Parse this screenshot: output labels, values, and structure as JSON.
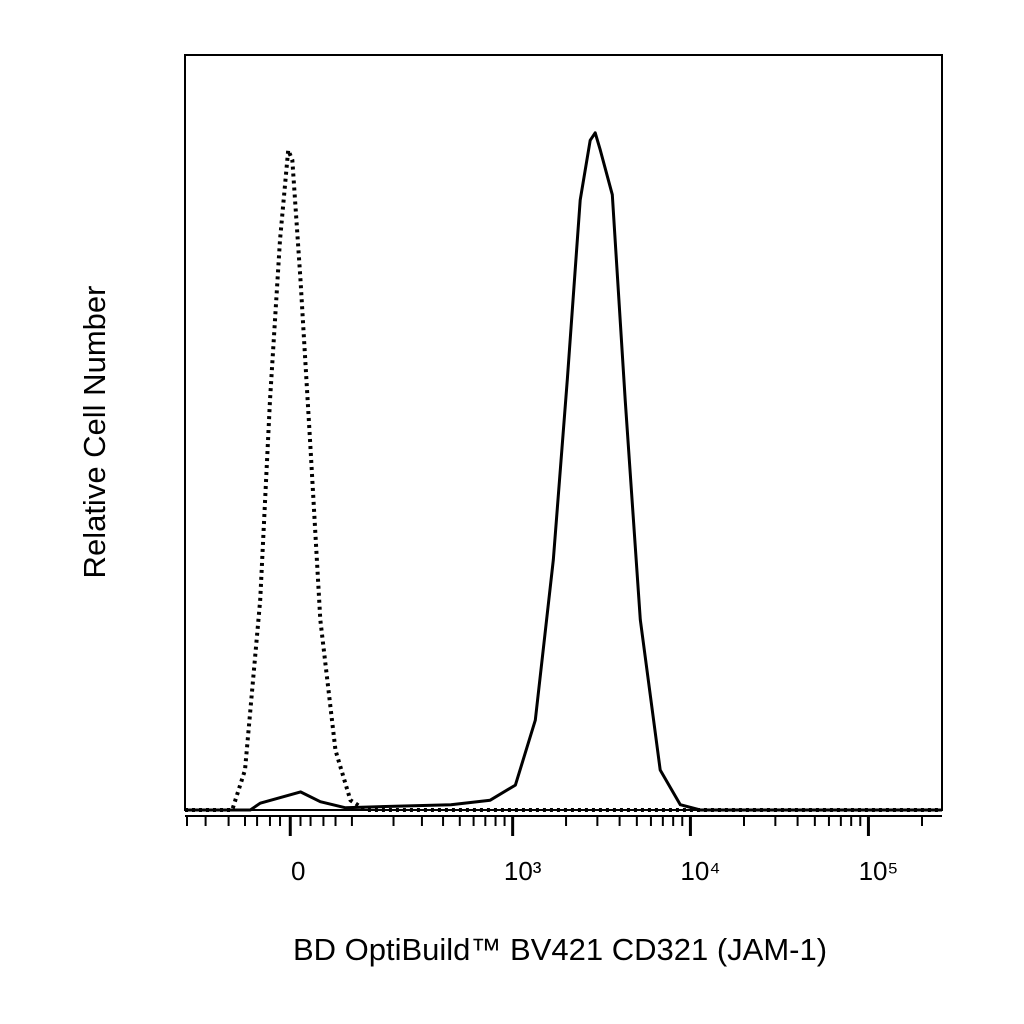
{
  "chart_data": {
    "type": "line",
    "x_label": "BD OptiBuild™ BV421 CD321 (JAM-1)",
    "y_label": "Relative Cell Number",
    "xscale": "biexponential",
    "xlim": [
      -206,
      259000
    ],
    "ylim": [
      0,
      100
    ],
    "xticks": [
      0,
      {
        "value": 1000,
        "label": "10³"
      },
      {
        "value": 10000,
        "label": "10⁴"
      },
      {
        "value": 100000,
        "label": "10⁵"
      }
    ],
    "xminorticks": [
      -200,
      -150,
      -100,
      -70,
      -50,
      -30,
      -15,
      15,
      30,
      50,
      70,
      100,
      200,
      300,
      400,
      500,
      600,
      700,
      800,
      900,
      2000,
      3000,
      4000,
      5000,
      6000,
      7000,
      8000,
      9000,
      20000,
      30000,
      40000,
      50000,
      60000,
      70000,
      80000,
      90000,
      200000
    ],
    "series": [
      {
        "color": "#000000",
        "style": "dotted",
        "x": [
          -206,
          -93,
          -70,
          -45,
          -30,
          -15,
          -3,
          3,
          15,
          30,
          45,
          70,
          97,
          128,
          259000
        ],
        "values": [
          0,
          0,
          5.3,
          27.8,
          54.3,
          75.5,
          87.4,
          86.1,
          70.2,
          47.7,
          25.2,
          7.9,
          1.3,
          0,
          0
        ]
      },
      {
        "color": "#000000",
        "style": "solid",
        "x": [
          -206,
          -61,
          -45,
          15,
          45,
          87,
          444,
          746,
          1036,
          1342,
          1695,
          2032,
          2402,
          2735,
          2918,
          3117,
          3640,
          4302,
          5230,
          6767,
          8770,
          11360,
          259000
        ],
        "values": [
          0,
          0,
          0.9,
          2.4,
          1.1,
          0.3,
          0.7,
          1.3,
          3.3,
          11.9,
          33.1,
          57.0,
          80.8,
          88.7,
          89.7,
          87.4,
          81.5,
          54.3,
          25.2,
          5.3,
          0.7,
          0,
          0
        ]
      }
    ]
  }
}
